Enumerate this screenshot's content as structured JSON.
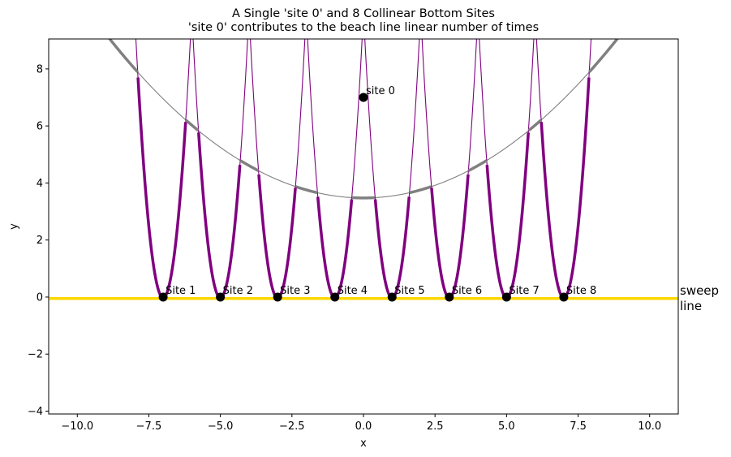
{
  "chart_data": {
    "type": "line",
    "title": "A Single 'site 0' and 8 Collinear Bottom Sites",
    "subtitle": "'site 0' contributes to the beach line linear number of times",
    "xlabel": "x",
    "ylabel": "y",
    "xlim": [
      -11,
      11
    ],
    "ylim": [
      -4.1,
      9.05
    ],
    "xticks": [
      -10.0,
      -7.5,
      -5.0,
      -2.5,
      0.0,
      2.5,
      5.0,
      7.5,
      10.0
    ],
    "xtick_labels": [
      "−10.0",
      "−7.5",
      "−5.0",
      "−2.5",
      "0.0",
      "2.5",
      "5.0",
      "7.5",
      "10.0"
    ],
    "yticks": [
      -4,
      -2,
      0,
      2,
      4,
      6,
      8
    ],
    "ytick_labels": [
      "−4",
      "−2",
      "0",
      "2",
      "4",
      "6",
      "8"
    ],
    "grid": false,
    "sweep_line": {
      "y": -0.05,
      "label_line1": "sweep",
      "label_line2": "line",
      "color": "#ffd700"
    },
    "top_site": {
      "label": "site 0",
      "x": 0,
      "y": 7
    },
    "bottom_sites": [
      {
        "label": "Site 1",
        "x": -7,
        "y": 0
      },
      {
        "label": "Site 2",
        "x": -5,
        "y": 0
      },
      {
        "label": "Site 3",
        "x": -3,
        "y": 0
      },
      {
        "label": "Site 4",
        "x": -1,
        "y": 0
      },
      {
        "label": "Site 5",
        "x": 1,
        "y": 0
      },
      {
        "label": "Site 6",
        "x": 3,
        "y": 0
      },
      {
        "label": "Site 7",
        "x": 5,
        "y": 0
      },
      {
        "label": "Site 8",
        "x": 7,
        "y": 0
      }
    ],
    "colors": {
      "bottom_parabola": "#800080",
      "top_parabola": "#808080",
      "site_marker": "#000000",
      "sweep": "#ffd700"
    }
  }
}
